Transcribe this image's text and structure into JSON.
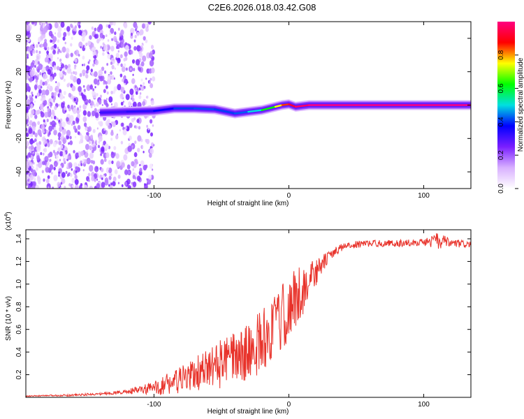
{
  "title": "C2E6.2026.018.03.42.G08",
  "chart_data": [
    {
      "type": "heatmap",
      "name": "spectrogram",
      "xlabel": "Height of straight line (km)",
      "ylabel": "Frequency (Hz)",
      "xlim": [
        -195,
        135
      ],
      "ylim": [
        -50,
        50
      ],
      "xticks": [
        -100,
        0,
        100
      ],
      "yticks": [
        -40,
        -20,
        0,
        20,
        40
      ],
      "colorbar": {
        "label": "Normalized spectral amplitude",
        "range": [
          0,
          1
        ],
        "ticks": [
          "0.0",
          "0.2",
          "0.4",
          "0.6",
          "0.8"
        ],
        "tick_values": [
          0,
          0.2,
          0.4,
          0.6,
          0.8
        ],
        "stops": [
          "#ffffff",
          "#d8b0ff",
          "#7a1fff",
          "#0000ff",
          "#00e0e0",
          "#00ff00",
          "#ffff00",
          "#ff0000",
          "#ff0080"
        ]
      },
      "ridge": [
        {
          "x": -140,
          "f": -4.5,
          "amp": 0.3
        },
        {
          "x": -120,
          "f": -4.0,
          "amp": 0.32
        },
        {
          "x": -100,
          "f": -3.5,
          "amp": 0.35
        },
        {
          "x": -85,
          "f": -2.0,
          "amp": 0.4
        },
        {
          "x": -70,
          "f": -2.0,
          "amp": 0.42
        },
        {
          "x": -55,
          "f": -2.5,
          "amp": 0.42
        },
        {
          "x": -40,
          "f": -5.0,
          "amp": 0.4
        },
        {
          "x": -30,
          "f": -4.0,
          "amp": 0.45
        },
        {
          "x": -20,
          "f": -3.0,
          "amp": 0.55
        },
        {
          "x": -10,
          "f": -1.0,
          "amp": 0.7
        },
        {
          "x": -5,
          "f": 0.0,
          "amp": 0.8
        },
        {
          "x": 0,
          "f": 0.5,
          "amp": 0.9
        },
        {
          "x": 5,
          "f": -1.0,
          "amp": 0.95
        },
        {
          "x": 15,
          "f": 0.0,
          "amp": 1.0
        },
        {
          "x": 50,
          "f": 0.0,
          "amp": 1.0
        },
        {
          "x": 100,
          "f": 0.0,
          "amp": 1.0
        },
        {
          "x": 135,
          "f": 0.0,
          "amp": 1.0
        }
      ]
    },
    {
      "type": "line",
      "name": "snr",
      "xlabel": "Height of straight line (km)",
      "ylabel": "SNR (10 * v/v)",
      "multiplier": "(x10",
      "multiplier_exp": "4",
      "multiplier_close": ")",
      "xlim": [
        -195,
        135
      ],
      "ylim": [
        0,
        1.48
      ],
      "xticks": [
        -100,
        0,
        100
      ],
      "yticks": [
        "0.2",
        "0.4",
        "0.6",
        "0.8",
        "1.0",
        "1.2",
        "1.4"
      ],
      "ytick_values": [
        0.2,
        0.4,
        0.6,
        0.8,
        1.0,
        1.2,
        1.4
      ],
      "color": "#e8322a",
      "x": [
        -195,
        -180,
        -160,
        -140,
        -120,
        -100,
        -90,
        -80,
        -70,
        -60,
        -50,
        -40,
        -30,
        -20,
        -10,
        0,
        10,
        20,
        30,
        40,
        50,
        60,
        80,
        100,
        110,
        120,
        135
      ],
      "y": [
        0.01,
        0.015,
        0.02,
        0.03,
        0.05,
        0.08,
        0.12,
        0.15,
        0.2,
        0.25,
        0.3,
        0.35,
        0.4,
        0.5,
        0.62,
        0.78,
        0.95,
        1.1,
        1.25,
        1.33,
        1.35,
        1.36,
        1.36,
        1.37,
        1.38,
        1.36,
        1.35
      ],
      "noise": [
        0.005,
        0.005,
        0.01,
        0.01,
        0.02,
        0.06,
        0.1,
        0.12,
        0.15,
        0.18,
        0.22,
        0.22,
        0.25,
        0.3,
        0.3,
        0.3,
        0.25,
        0.12,
        0.05,
        0.03,
        0.03,
        0.03,
        0.03,
        0.03,
        0.08,
        0.04,
        0.03
      ]
    }
  ]
}
